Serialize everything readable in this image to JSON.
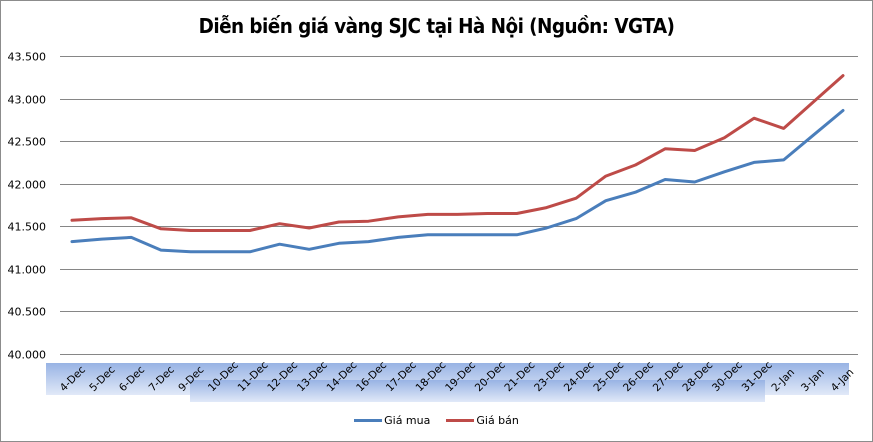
{
  "chart_data": {
    "type": "line",
    "title": "Diễn biến giá vàng SJC tại Hà Nội (Nguồn: VGTA)",
    "xlabel": "",
    "ylabel": "",
    "ylim": [
      40000,
      43500
    ],
    "yticks": [
      "40.000",
      "40.500",
      "41.000",
      "41.500",
      "42.000",
      "42.500",
      "43.000",
      "43.500"
    ],
    "grid": true,
    "legend_position": "bottom",
    "categories": [
      "4-Dec",
      "5-Dec",
      "6-Dec",
      "7-Dec",
      "9-Dec",
      "10-Dec",
      "11-Dec",
      "12-Dec",
      "13-Dec",
      "14-Dec",
      "16-Dec",
      "17-Dec",
      "18-Dec",
      "19-Dec",
      "20-Dec",
      "21-Dec",
      "23-Dec",
      "24-Dec",
      "25-Dec",
      "26-Dec",
      "27-Dec",
      "28-Dec",
      "30-Dec",
      "31-Dec",
      "2-Jan",
      "3-Jan",
      "4-Jan"
    ],
    "series": [
      {
        "name": "Giá mua",
        "color": "#4a7ebb",
        "values": [
          41320,
          41350,
          41370,
          41220,
          41200,
          41200,
          41200,
          41290,
          41230,
          41300,
          41320,
          41370,
          41400,
          41400,
          41400,
          41400,
          41480,
          41590,
          41800,
          41900,
          42050,
          42020,
          42140,
          42250,
          42280,
          42570,
          42860
        ]
      },
      {
        "name": "Giá bán",
        "color": "#be4b48",
        "values": [
          41570,
          41590,
          41600,
          41470,
          41450,
          41450,
          41450,
          41530,
          41480,
          41550,
          41560,
          41610,
          41640,
          41640,
          41650,
          41650,
          41720,
          41830,
          42090,
          42220,
          42410,
          42390,
          42540,
          42770,
          42650,
          42960,
          43270
        ]
      }
    ]
  },
  "legend": {
    "items": [
      {
        "label": "Giá mua",
        "color": "#4a7ebb"
      },
      {
        "label": "Giá bán",
        "color": "#be4b48"
      }
    ]
  }
}
